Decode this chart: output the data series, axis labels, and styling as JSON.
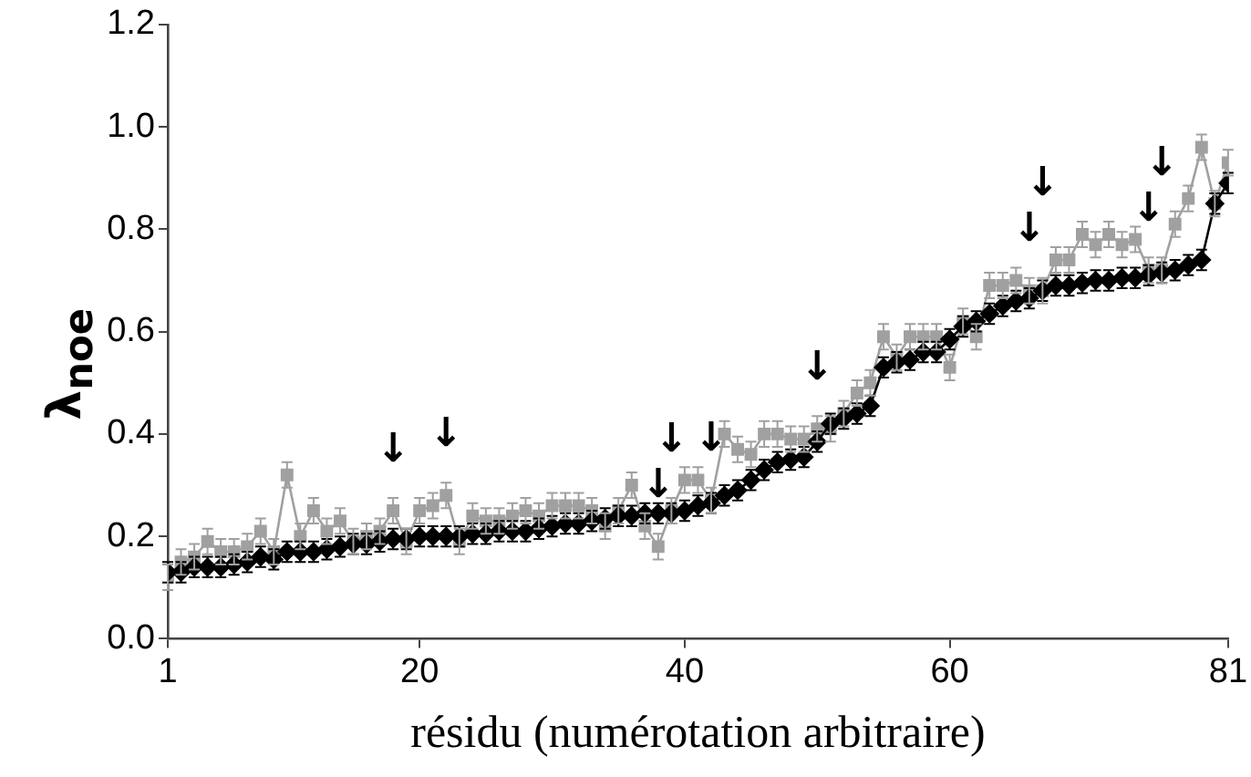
{
  "chart_data": {
    "type": "line",
    "xlabel": "résidu (numérotation arbitraire)",
    "ylabel": "λ$_{noe}$",
    "x": [
      1,
      2,
      3,
      4,
      5,
      6,
      7,
      8,
      9,
      10,
      11,
      12,
      13,
      14,
      15,
      16,
      17,
      18,
      19,
      20,
      21,
      22,
      23,
      24,
      25,
      26,
      27,
      28,
      29,
      30,
      31,
      32,
      33,
      34,
      35,
      36,
      37,
      38,
      39,
      40,
      41,
      42,
      43,
      44,
      45,
      46,
      47,
      48,
      49,
      50,
      51,
      52,
      53,
      54,
      55,
      56,
      57,
      58,
      59,
      60,
      61,
      62,
      63,
      64,
      65,
      66,
      67,
      68,
      69,
      70,
      71,
      72,
      73,
      74,
      75,
      76,
      77,
      78,
      79,
      80,
      81
    ],
    "xlim": [
      1,
      81
    ],
    "xticks": [
      1,
      20,
      40,
      60,
      81
    ],
    "ylim": [
      0,
      1.2
    ],
    "yticks": [
      {
        "value": 0,
        "label": "0.0"
      },
      0.2,
      0.4,
      0.6,
      0.8,
      {
        "value": 1,
        "label": "1.0"
      },
      1.2
    ],
    "grid": false,
    "legend": false,
    "line_style": "solid",
    "series": [
      {
        "color": "#a0a0a0",
        "marker": "square",
        "values": [
          0.12,
          0.15,
          0.16,
          0.19,
          0.17,
          0.17,
          0.18,
          0.21,
          0.17,
          0.32,
          0.2,
          0.25,
          0.21,
          0.23,
          0.19,
          0.2,
          0.21,
          0.25,
          0.19,
          0.25,
          0.26,
          0.28,
          0.19,
          0.24,
          0.23,
          0.23,
          0.24,
          0.25,
          0.24,
          0.26,
          0.26,
          0.26,
          0.25,
          0.22,
          0.25,
          0.3,
          0.22,
          0.18,
          0.25,
          0.31,
          0.31,
          0.27,
          0.4,
          0.37,
          0.36,
          0.4,
          0.4,
          0.39,
          0.39,
          0.41,
          0.41,
          0.44,
          0.48,
          0.5,
          0.59,
          0.55,
          0.59,
          0.59,
          0.59,
          0.53,
          0.62,
          0.59,
          0.69,
          0.69,
          0.7,
          0.68,
          0.68,
          0.74,
          0.74,
          0.79,
          0.77,
          0.79,
          0.77,
          0.78,
          0.72,
          0.72,
          0.81,
          0.86,
          0.96,
          0.85,
          0.93
        ],
        "errors": [
          0.025,
          0.025,
          0.025,
          0.025,
          0.025,
          0.025,
          0.025,
          0.025,
          0.025,
          0.025,
          0.025,
          0.025,
          0.025,
          0.025,
          0.025,
          0.025,
          0.025,
          0.025,
          0.025,
          0.025,
          0.025,
          0.025,
          0.025,
          0.025,
          0.025,
          0.025,
          0.025,
          0.025,
          0.025,
          0.025,
          0.025,
          0.025,
          0.025,
          0.025,
          0.025,
          0.025,
          0.025,
          0.025,
          0.025,
          0.025,
          0.025,
          0.025,
          0.025,
          0.025,
          0.025,
          0.025,
          0.025,
          0.025,
          0.025,
          0.025,
          0.025,
          0.025,
          0.025,
          0.025,
          0.025,
          0.025,
          0.025,
          0.025,
          0.025,
          0.025,
          0.025,
          0.025,
          0.025,
          0.025,
          0.025,
          0.025,
          0.025,
          0.025,
          0.025,
          0.025,
          0.025,
          0.025,
          0.025,
          0.025,
          0.025,
          0.025,
          0.025,
          0.025,
          0.025,
          0.025,
          0.025
        ]
      },
      {
        "color": "#000000",
        "marker": "diamond",
        "values": [
          0.13,
          0.13,
          0.14,
          0.14,
          0.14,
          0.145,
          0.15,
          0.16,
          0.155,
          0.17,
          0.17,
          0.17,
          0.175,
          0.18,
          0.185,
          0.185,
          0.19,
          0.195,
          0.195,
          0.2,
          0.2,
          0.2,
          0.2,
          0.205,
          0.205,
          0.21,
          0.21,
          0.21,
          0.215,
          0.22,
          0.225,
          0.225,
          0.23,
          0.235,
          0.24,
          0.24,
          0.245,
          0.245,
          0.245,
          0.25,
          0.26,
          0.265,
          0.28,
          0.29,
          0.31,
          0.33,
          0.345,
          0.35,
          0.355,
          0.385,
          0.42,
          0.43,
          0.44,
          0.455,
          0.53,
          0.54,
          0.545,
          0.56,
          0.56,
          0.585,
          0.61,
          0.62,
          0.635,
          0.65,
          0.66,
          0.665,
          0.68,
          0.69,
          0.69,
          0.695,
          0.7,
          0.7,
          0.705,
          0.705,
          0.71,
          0.715,
          0.72,
          0.73,
          0.74,
          0.85,
          0.89
        ],
        "errors": [
          0.02,
          0.02,
          0.02,
          0.02,
          0.02,
          0.02,
          0.02,
          0.02,
          0.02,
          0.02,
          0.02,
          0.02,
          0.02,
          0.02,
          0.02,
          0.02,
          0.02,
          0.02,
          0.02,
          0.02,
          0.02,
          0.02,
          0.02,
          0.02,
          0.02,
          0.02,
          0.02,
          0.02,
          0.02,
          0.02,
          0.02,
          0.02,
          0.02,
          0.02,
          0.02,
          0.02,
          0.02,
          0.02,
          0.02,
          0.02,
          0.02,
          0.02,
          0.02,
          0.02,
          0.02,
          0.02,
          0.02,
          0.02,
          0.02,
          0.02,
          0.02,
          0.02,
          0.02,
          0.02,
          0.02,
          0.02,
          0.02,
          0.02,
          0.02,
          0.02,
          0.02,
          0.02,
          0.02,
          0.02,
          0.02,
          0.02,
          0.02,
          0.02,
          0.02,
          0.02,
          0.02,
          0.02,
          0.02,
          0.02,
          0.02,
          0.02,
          0.02,
          0.02,
          0.02,
          0.02,
          0.02
        ]
      }
    ],
    "annotations": [
      {
        "text": "↓",
        "x": 18,
        "y": 0.25
      },
      {
        "text": "↓",
        "x": 22,
        "y": 0.28
      },
      {
        "text": "↓",
        "x": 38,
        "y": 0.18
      },
      {
        "text": "↓",
        "x": 39,
        "y": 0.25
      },
      {
        "text": "↓",
        "x": 42,
        "y": 0.27
      },
      {
        "text": "↓",
        "x": 50,
        "y": 0.41
      },
      {
        "text": "↓",
        "x": 66,
        "y": 0.68
      },
      {
        "text": "↓",
        "x": 67,
        "y": 0.68
      },
      {
        "text": "↓",
        "x": 75,
        "y": 0.72
      },
      {
        "text": "↓",
        "x": 76,
        "y": 0.72
      }
    ]
  }
}
